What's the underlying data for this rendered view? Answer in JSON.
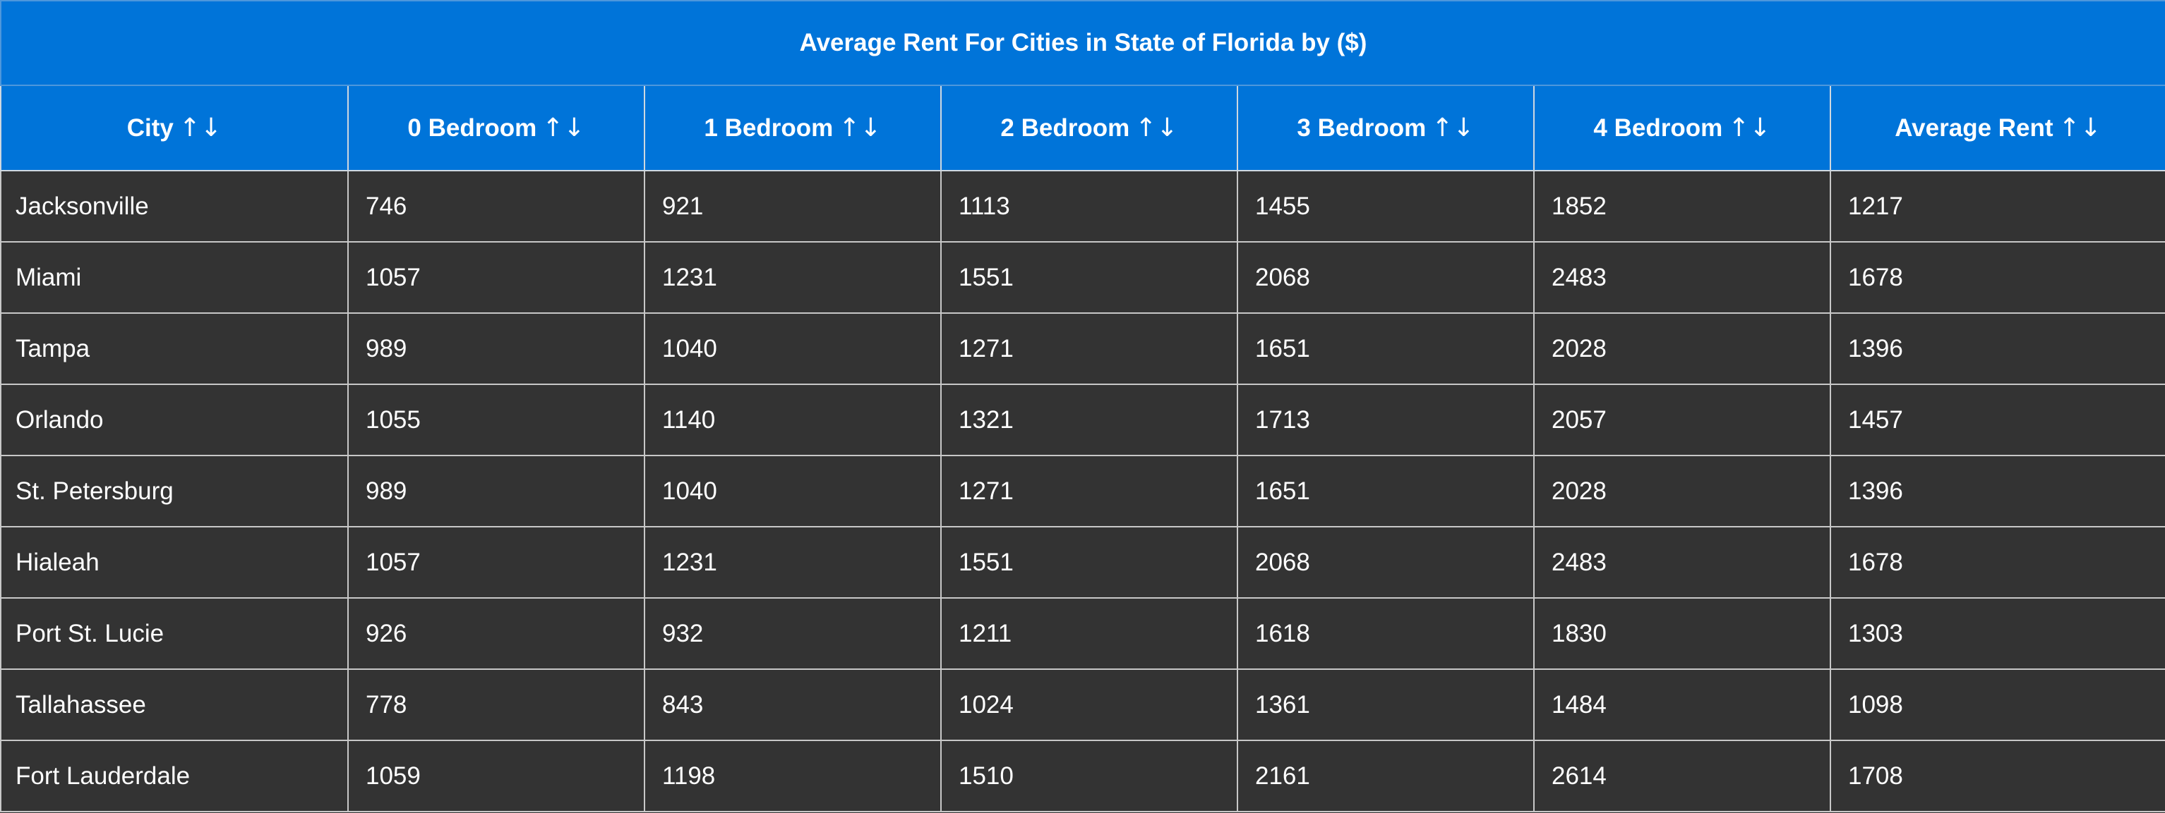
{
  "table": {
    "title": "Average Rent For Cities in State of Florida by ($)",
    "sort_icon": "↑↓",
    "columns": [
      "City",
      "0 Bedroom",
      "1 Bedroom",
      "2 Bedroom",
      "3 Bedroom",
      "4 Bedroom",
      "Average Rent"
    ],
    "rows": [
      [
        "Jacksonville",
        "746",
        "921",
        "1113",
        "1455",
        "1852",
        "1217"
      ],
      [
        "Miami",
        "1057",
        "1231",
        "1551",
        "2068",
        "2483",
        "1678"
      ],
      [
        "Tampa",
        "989",
        "1040",
        "1271",
        "1651",
        "2028",
        "1396"
      ],
      [
        "Orlando",
        "1055",
        "1140",
        "1321",
        "1713",
        "2057",
        "1457"
      ],
      [
        "St. Petersburg",
        "989",
        "1040",
        "1271",
        "1651",
        "2028",
        "1396"
      ],
      [
        "Hialeah",
        "1057",
        "1231",
        "1551",
        "2068",
        "2483",
        "1678"
      ],
      [
        "Port St. Lucie",
        "926",
        "932",
        "1211",
        "1618",
        "1830",
        "1303"
      ],
      [
        "Tallahassee",
        "778",
        "843",
        "1024",
        "1361",
        "1484",
        "1098"
      ],
      [
        "Fort Lauderdale",
        "1059",
        "1198",
        "1510",
        "2161",
        "2614",
        "1708"
      ]
    ]
  },
  "colors": {
    "header_bg": "#0074d9",
    "body_bg": "#333333",
    "text": "#ffffff",
    "border": "#c8c8c8"
  }
}
